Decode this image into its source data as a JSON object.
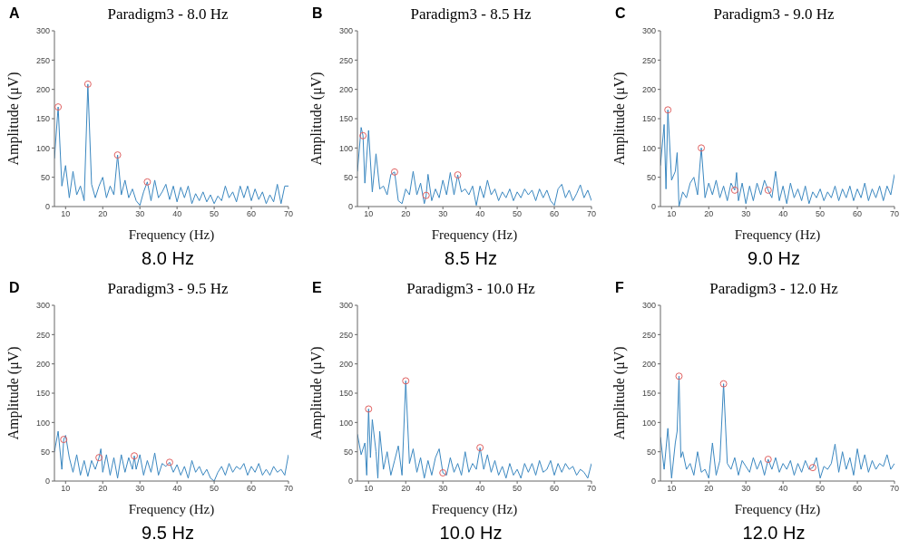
{
  "chart_data": [
    {
      "type": "line",
      "title": "Paradigm3 - 8.0 Hz",
      "xlabel": "Frequency (Hz)",
      "ylabel": "Amplitude (μV)",
      "annotations": [
        "A",
        "8.0 Hz"
      ],
      "xlim": [
        7,
        70
      ],
      "ylim": [
        0,
        300
      ],
      "xticks": [
        10,
        20,
        30,
        40,
        50,
        60,
        70
      ],
      "yticks": [
        0,
        50,
        100,
        150,
        200,
        250,
        300
      ],
      "series": [
        {
          "type": "line",
          "color": "#3a87c0",
          "x": [
            7,
            8,
            9,
            10,
            11,
            12,
            13,
            14,
            15,
            16,
            17,
            18,
            19,
            20,
            21,
            22,
            23,
            24,
            25,
            26,
            27,
            28,
            29,
            30,
            31,
            32,
            33,
            34,
            35,
            36,
            37,
            38,
            39,
            40,
            41,
            42,
            43,
            44,
            45,
            46,
            47,
            48,
            49,
            50,
            51,
            52,
            53,
            54,
            55,
            56,
            57,
            58,
            59,
            60,
            61,
            62,
            63,
            64,
            65,
            66,
            67,
            68,
            69,
            70
          ],
          "values": [
            82,
            170,
            35,
            70,
            15,
            60,
            20,
            35,
            10,
            209,
            38,
            15,
            35,
            50,
            15,
            35,
            20,
            88,
            20,
            45,
            15,
            30,
            10,
            2,
            25,
            42,
            10,
            45,
            15,
            25,
            38,
            12,
            35,
            8,
            33,
            15,
            35,
            5,
            22,
            10,
            25,
            8,
            20,
            5,
            18,
            10,
            35,
            15,
            25,
            8,
            35,
            15,
            35,
            10,
            30,
            12,
            25,
            5,
            20,
            8,
            38,
            5,
            35,
            35
          ]
        },
        {
          "type": "scatter",
          "marker": "circle",
          "color": "#e06060",
          "x": [
            8,
            16,
            24,
            32
          ],
          "values": [
            170,
            209,
            88,
            42
          ]
        }
      ]
    },
    {
      "type": "line",
      "title": "Paradigm3 - 8.5 Hz",
      "xlabel": "Frequency (Hz)",
      "ylabel": "Amplitude (μV)",
      "annotations": [
        "B",
        "8.5 Hz"
      ],
      "xlim": [
        7,
        70
      ],
      "ylim": [
        0,
        300
      ],
      "xticks": [
        10,
        20,
        30,
        40,
        50,
        60,
        70
      ],
      "yticks": [
        0,
        50,
        100,
        150,
        200,
        250,
        300
      ],
      "series": [
        {
          "type": "line",
          "color": "#3a87c0",
          "x": [
            7,
            8,
            8.5,
            9,
            10,
            11,
            12,
            13,
            14,
            15,
            16,
            17,
            18,
            19,
            20,
            21,
            22,
            23,
            24,
            25,
            25.5,
            26,
            27,
            28,
            29,
            30,
            31,
            32,
            33,
            34,
            35,
            36,
            37,
            38,
            39,
            40,
            41,
            42,
            43,
            44,
            45,
            46,
            47,
            48,
            49,
            50,
            51,
            52,
            53,
            54,
            55,
            56,
            57,
            58,
            59,
            60,
            61,
            62,
            63,
            64,
            65,
            66,
            67,
            68,
            69,
            70
          ],
          "values": [
            60,
            135,
            121,
            40,
            130,
            25,
            90,
            30,
            35,
            20,
            55,
            59,
            10,
            5,
            30,
            20,
            60,
            20,
            40,
            5,
            19,
            55,
            10,
            30,
            15,
            45,
            20,
            58,
            20,
            54,
            25,
            30,
            20,
            35,
            2,
            35,
            15,
            45,
            20,
            30,
            10,
            25,
            15,
            30,
            10,
            25,
            15,
            30,
            20,
            28,
            10,
            30,
            15,
            28,
            10,
            2,
            30,
            38,
            15,
            28,
            10,
            22,
            37,
            15,
            28,
            10
          ]
        },
        {
          "type": "scatter",
          "marker": "circle",
          "color": "#e06060",
          "x": [
            8.5,
            17,
            25.5,
            34
          ],
          "values": [
            121,
            59,
            19,
            54
          ]
        }
      ]
    },
    {
      "type": "line",
      "title": "Paradigm3 - 9.0 Hz",
      "xlabel": "Frequency (Hz)",
      "ylabel": "Amplitude (μV)",
      "annotations": [
        "C",
        "9.0 Hz"
      ],
      "xlim": [
        7,
        70
      ],
      "ylim": [
        0,
        300
      ],
      "xticks": [
        10,
        20,
        30,
        40,
        50,
        60,
        70
      ],
      "yticks": [
        0,
        50,
        100,
        150,
        200,
        250,
        300
      ],
      "series": [
        {
          "type": "line",
          "color": "#3a87c0",
          "x": [
            7,
            8,
            8.5,
            9,
            10,
            11,
            11.5,
            12,
            13,
            14,
            15,
            16,
            17,
            18,
            19,
            20,
            21,
            22,
            23,
            24,
            25,
            26,
            27,
            27.5,
            28,
            29,
            30,
            31,
            32,
            33,
            34,
            35,
            36,
            37,
            38,
            39,
            40,
            41,
            42,
            43,
            44,
            45,
            46,
            47,
            48,
            49,
            50,
            51,
            52,
            53,
            54,
            55,
            56,
            57,
            58,
            59,
            60,
            61,
            62,
            63,
            64,
            65,
            66,
            67,
            68,
            69,
            70
          ],
          "values": [
            70,
            140,
            30,
            165,
            45,
            60,
            92,
            0,
            25,
            15,
            40,
            50,
            20,
            100,
            15,
            40,
            20,
            45,
            15,
            35,
            10,
            40,
            28,
            58,
            10,
            40,
            5,
            35,
            10,
            40,
            20,
            45,
            28,
            15,
            60,
            10,
            35,
            5,
            40,
            15,
            30,
            10,
            35,
            5,
            25,
            15,
            30,
            10,
            25,
            15,
            35,
            10,
            30,
            15,
            35,
            10,
            30,
            15,
            40,
            10,
            30,
            15,
            35,
            10,
            35,
            20,
            55
          ]
        },
        {
          "type": "scatter",
          "marker": "circle",
          "color": "#e06060",
          "x": [
            9,
            18,
            27,
            36
          ],
          "values": [
            165,
            100,
            28,
            28
          ]
        }
      ]
    },
    {
      "type": "line",
      "title": "Paradigm3 - 9.5 Hz",
      "xlabel": "Frequency (Hz)",
      "ylabel": "Amplitude (μV)",
      "annotations": [
        "D",
        "9.5 Hz"
      ],
      "xlim": [
        7,
        70
      ],
      "ylim": [
        0,
        300
      ],
      "xticks": [
        10,
        20,
        30,
        40,
        50,
        60,
        70
      ],
      "yticks": [
        0,
        50,
        100,
        150,
        200,
        250,
        300
      ],
      "series": [
        {
          "type": "line",
          "color": "#3a87c0",
          "x": [
            7,
            8,
            9,
            9.5,
            10,
            11,
            12,
            13,
            14,
            15,
            16,
            17,
            18,
            19,
            19.5,
            20,
            21,
            22,
            23,
            24,
            25,
            26,
            27,
            28,
            28.5,
            29,
            30,
            31,
            32,
            33,
            34,
            35,
            36,
            37,
            38,
            39,
            40,
            41,
            42,
            43,
            44,
            45,
            46,
            47,
            48,
            49,
            50,
            51,
            52,
            53,
            54,
            55,
            56,
            57,
            58,
            59,
            60,
            61,
            62,
            63,
            64,
            65,
            66,
            67,
            68,
            69,
            70
          ],
          "values": [
            50,
            85,
            20,
            71,
            78,
            40,
            15,
            45,
            10,
            35,
            8,
            35,
            20,
            40,
            55,
            15,
            45,
            10,
            40,
            5,
            45,
            15,
            40,
            20,
            43,
            20,
            45,
            10,
            35,
            15,
            48,
            10,
            30,
            25,
            32,
            15,
            28,
            10,
            25,
            5,
            35,
            15,
            25,
            10,
            20,
            5,
            0,
            15,
            25,
            10,
            30,
            15,
            25,
            20,
            30,
            10,
            25,
            15,
            30,
            10,
            20,
            10,
            25,
            15,
            20,
            10,
            45
          ]
        },
        {
          "type": "scatter",
          "marker": "circle",
          "color": "#e06060",
          "x": [
            9.5,
            19,
            28.5,
            38
          ],
          "values": [
            71,
            40,
            43,
            32
          ]
        }
      ]
    },
    {
      "type": "line",
      "title": "Paradigm3 - 10.0 Hz",
      "xlabel": "Frequency (Hz)",
      "ylabel": "Amplitude (μV)",
      "annotations": [
        "E",
        "10.0 Hz"
      ],
      "xlim": [
        7,
        70
      ],
      "ylim": [
        0,
        300
      ],
      "xticks": [
        10,
        20,
        30,
        40,
        50,
        60,
        70
      ],
      "yticks": [
        0,
        50,
        100,
        150,
        200,
        250,
        300
      ],
      "series": [
        {
          "type": "line",
          "color": "#3a87c0",
          "x": [
            7,
            8,
            9,
            9.5,
            10,
            10.5,
            11,
            12,
            12.5,
            13,
            14,
            15,
            16,
            17,
            18,
            19,
            20,
            21,
            22,
            23,
            24,
            25,
            26,
            27,
            28,
            29,
            30,
            31,
            32,
            33,
            34,
            35,
            36,
            37,
            38,
            39,
            40,
            41,
            42,
            43,
            44,
            45,
            46,
            47,
            48,
            49,
            50,
            51,
            52,
            53,
            54,
            55,
            56,
            57,
            58,
            59,
            60,
            61,
            62,
            63,
            64,
            65,
            66,
            67,
            68,
            69,
            70
          ],
          "values": [
            80,
            45,
            65,
            10,
            123,
            40,
            105,
            50,
            5,
            85,
            20,
            50,
            10,
            35,
            60,
            10,
            171,
            30,
            55,
            15,
            40,
            5,
            35,
            10,
            40,
            55,
            14,
            10,
            40,
            15,
            30,
            10,
            50,
            15,
            30,
            20,
            57,
            20,
            45,
            15,
            35,
            10,
            25,
            5,
            30,
            10,
            20,
            5,
            30,
            15,
            30,
            10,
            35,
            15,
            20,
            35,
            10,
            30,
            15,
            30,
            20,
            25,
            10,
            20,
            15,
            5,
            30
          ]
        },
        {
          "type": "scatter",
          "marker": "circle",
          "color": "#e06060",
          "x": [
            10,
            20,
            30,
            40
          ],
          "values": [
            123,
            171,
            14,
            57
          ]
        }
      ]
    },
    {
      "type": "line",
      "title": "Paradigm3 - 12.0 Hz",
      "xlabel": "Frequency (Hz)",
      "ylabel": "Amplitude (μV)",
      "annotations": [
        "F",
        "12.0 Hz"
      ],
      "xlim": [
        7,
        70
      ],
      "ylim": [
        0,
        300
      ],
      "xticks": [
        10,
        20,
        30,
        40,
        50,
        60,
        70
      ],
      "yticks": [
        0,
        50,
        100,
        150,
        200,
        250,
        300
      ],
      "series": [
        {
          "type": "line",
          "color": "#3a87c0",
          "x": [
            7,
            8,
            9,
            10,
            11,
            11.5,
            12,
            12.5,
            13,
            14,
            15,
            16,
            17,
            18,
            19,
            20,
            21,
            22,
            23,
            24,
            25,
            26,
            27,
            28,
            29,
            30,
            31,
            32,
            33,
            34,
            35,
            36,
            37,
            38,
            39,
            40,
            41,
            42,
            43,
            44,
            45,
            46,
            47,
            48,
            49,
            50,
            51,
            52,
            53,
            54,
            55,
            56,
            57,
            58,
            59,
            60,
            61,
            62,
            63,
            64,
            65,
            66,
            67,
            68,
            69,
            70
          ],
          "values": [
            75,
            20,
            90,
            5,
            65,
            85,
            179,
            40,
            50,
            20,
            30,
            10,
            50,
            15,
            20,
            5,
            65,
            10,
            35,
            166,
            30,
            20,
            40,
            10,
            35,
            25,
            15,
            40,
            20,
            35,
            10,
            37,
            20,
            40,
            15,
            30,
            20,
            35,
            10,
            30,
            15,
            35,
            20,
            23,
            40,
            5,
            25,
            20,
            30,
            63,
            15,
            50,
            20,
            40,
            10,
            55,
            20,
            45,
            15,
            35,
            20,
            30,
            25,
            45,
            20,
            30
          ]
        },
        {
          "type": "scatter",
          "marker": "circle",
          "color": "#e06060",
          "x": [
            12,
            24,
            36,
            48
          ],
          "values": [
            179,
            166,
            37,
            23
          ]
        }
      ]
    }
  ]
}
